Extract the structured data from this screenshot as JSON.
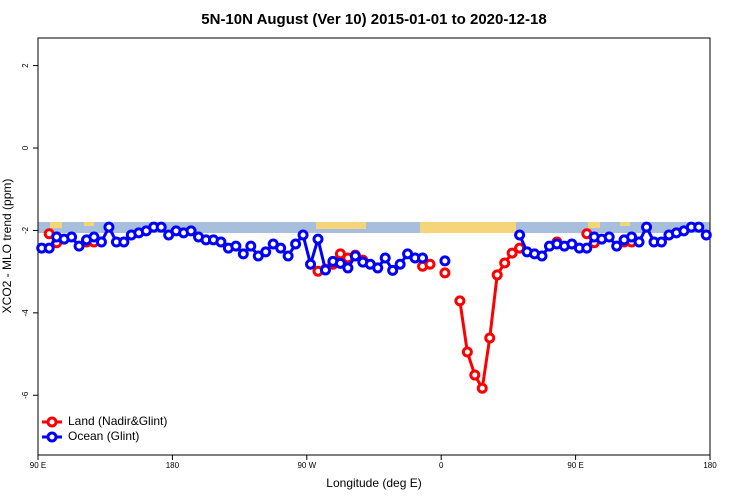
{
  "chart_data": {
    "type": "line",
    "title": "5N-10N August (Ver 10)   2015-01-01 to 2020-12-18",
    "x_label": "Longitude (deg E)",
    "y_label": "XCO2 - MLO trend (ppm)",
    "xlim": [
      90,
      540
    ],
    "ylim": [
      -7.45,
      2.67
    ],
    "xticks": [
      {
        "value": 90,
        "label": "90 E"
      },
      180,
      {
        "value": 270,
        "label": "90 W"
      },
      {
        "value": 360,
        "label": "0"
      },
      {
        "value": 450,
        "label": "90 E"
      },
      {
        "value": 540,
        "label": "180"
      }
    ],
    "yticks": [
      -6,
      -4,
      -2,
      0,
      2
    ],
    "legend": "bottom-left",
    "x": [
      92.5,
      97.5,
      102.5,
      107.5,
      112.5,
      117.5,
      122.5,
      127.5,
      132.5,
      137.5,
      142.5,
      147.5,
      152.5,
      157.5,
      162.5,
      167.5,
      172.5,
      177.5,
      182.5,
      187.5,
      192.5,
      197.5,
      202.5,
      207.5,
      212.5,
      217.5,
      222.5,
      227.5,
      232.5,
      237.5,
      242.5,
      247.5,
      252.5,
      257.5,
      262.5,
      267.5,
      272.5,
      277.5,
      282.5,
      287.5,
      292.5,
      297.5,
      302.5,
      307.5,
      312.5,
      317.5,
      322.5,
      327.5,
      332.5,
      337.5,
      342.5,
      347.5,
      352.5,
      357.5,
      362.5,
      367.5,
      372.5,
      377.5,
      382.5,
      387.5,
      392.5,
      397.5,
      402.5,
      407.5,
      412.5,
      417.5,
      422.5,
      427.5,
      432.5,
      437.5,
      442.5,
      447.5,
      452.5,
      457.5,
      462.5,
      467.5,
      472.5,
      477.5,
      482.5,
      487.5,
      492.5,
      497.5,
      502.5,
      507.5,
      512.5,
      517.5,
      522.5,
      527.5,
      532.5,
      537.5
    ],
    "series": [
      {
        "name": "Land (Nadir&Glint)",
        "color": "#ff0000",
        "values": [
          null,
          -2.08,
          -2.3,
          null,
          null,
          null,
          -2.28,
          -2.28,
          null,
          null,
          null,
          null,
          null,
          null,
          null,
          null,
          null,
          null,
          null,
          null,
          null,
          null,
          null,
          null,
          null,
          null,
          null,
          null,
          null,
          null,
          null,
          null,
          null,
          null,
          null,
          null,
          null,
          -2.99,
          -2.94,
          -2.82,
          -2.57,
          -2.67,
          -2.6,
          -2.72,
          null,
          null,
          null,
          null,
          null,
          null,
          null,
          -2.87,
          -2.82,
          null,
          -3.03,
          null,
          -3.71,
          -4.95,
          -5.51,
          -5.83,
          -4.61,
          -3.08,
          -2.79,
          -2.55,
          -2.43,
          null,
          null,
          null,
          null,
          -2.28,
          null,
          null,
          null,
          -2.08,
          -2.3,
          null,
          null,
          null,
          -2.28,
          -2.28,
          null,
          null,
          null,
          null,
          null,
          null,
          null,
          null,
          null,
          null
        ]
      },
      {
        "name": "Ocean (Glint)",
        "color": "#0000ff",
        "values": [
          -2.43,
          -2.43,
          -2.16,
          -2.21,
          -2.16,
          -2.38,
          -2.23,
          -2.16,
          -2.28,
          -1.92,
          -2.28,
          -2.28,
          -2.11,
          -2.06,
          -2.01,
          -1.92,
          -1.92,
          -2.11,
          -2.01,
          -2.06,
          -2.01,
          -2.16,
          -2.23,
          -2.23,
          -2.28,
          -2.43,
          -2.38,
          -2.57,
          -2.38,
          -2.62,
          -2.52,
          -2.33,
          -2.43,
          -2.62,
          -2.33,
          -2.11,
          -2.82,
          -2.21,
          -2.96,
          -2.75,
          -2.8,
          -2.91,
          -2.62,
          -2.77,
          -2.82,
          -2.91,
          -2.67,
          -2.97,
          -2.82,
          -2.57,
          -2.67,
          -2.67,
          null,
          null,
          -2.74,
          null,
          null,
          null,
          null,
          null,
          null,
          null,
          null,
          null,
          -2.11,
          -2.52,
          -2.57,
          -2.62,
          -2.38,
          -2.33,
          -2.38,
          -2.33,
          -2.43,
          -2.43,
          -2.16,
          -2.21,
          -2.16,
          -2.38,
          -2.23,
          -2.16,
          -2.28,
          -1.92,
          -2.28,
          -2.28,
          -2.11,
          -2.06,
          -2.01,
          -1.92,
          -1.92,
          -2.11
        ]
      }
    ]
  }
}
